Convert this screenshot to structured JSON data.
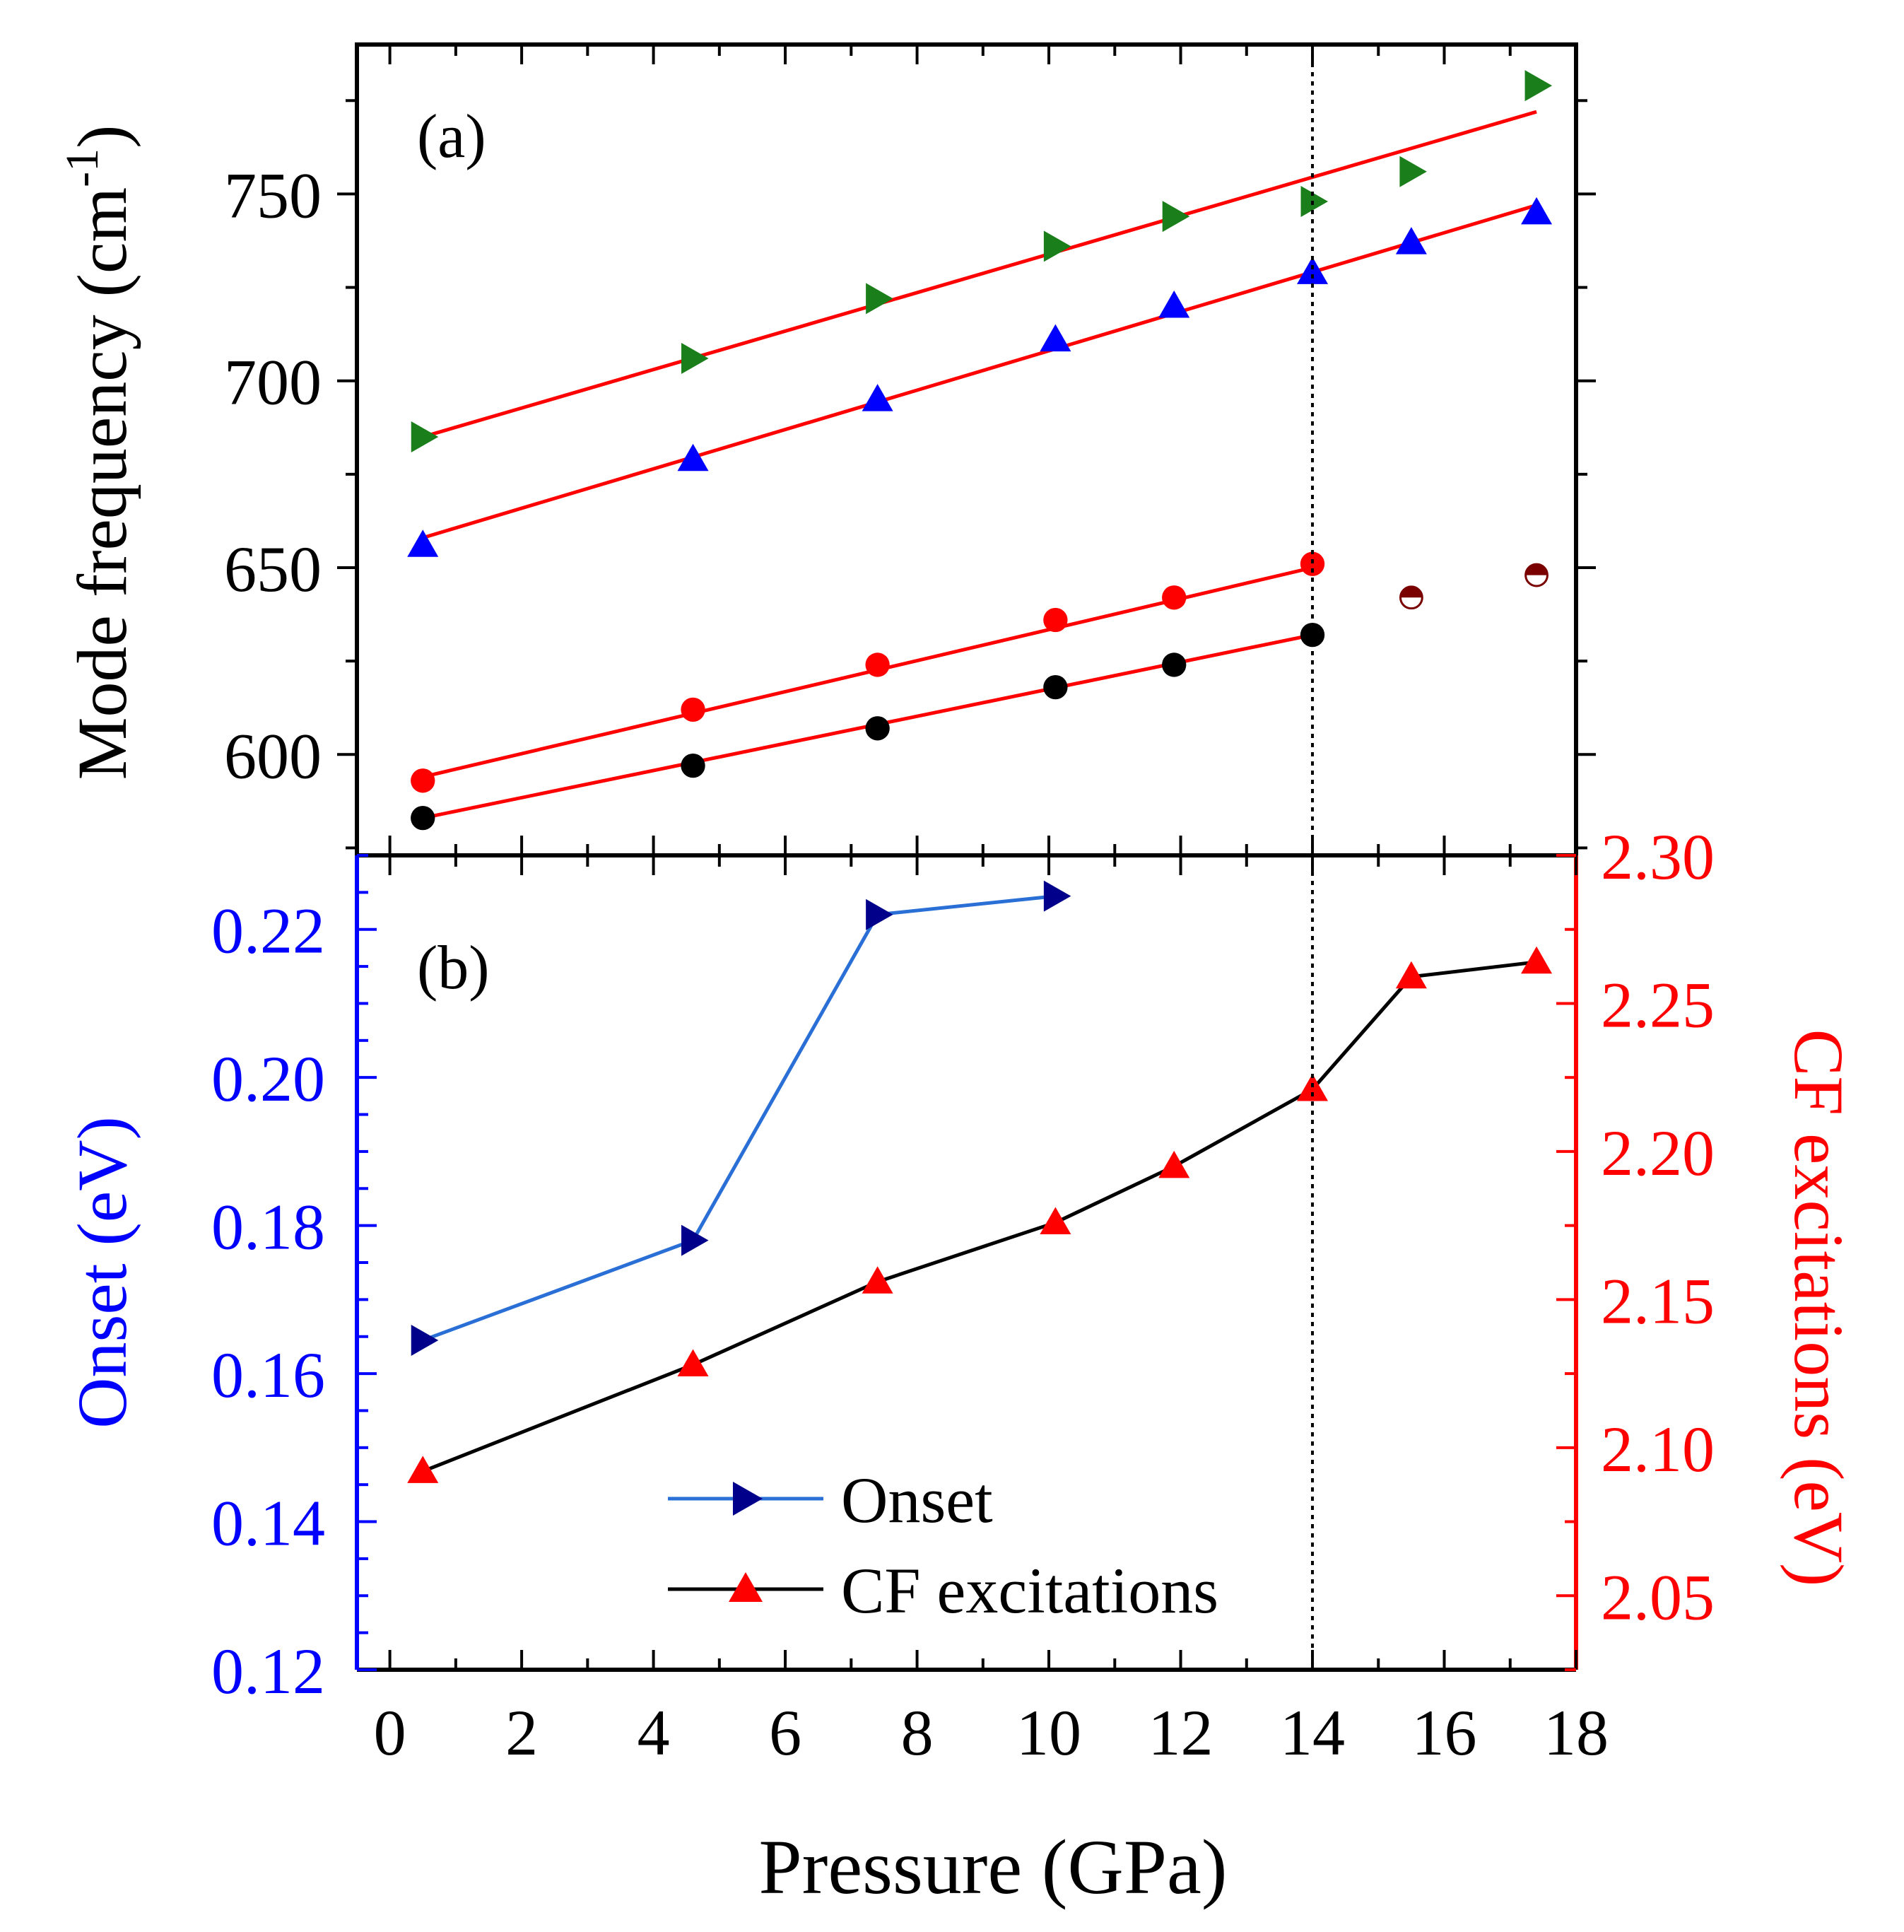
{
  "figure": {
    "xlabel": "Pressure (GPa)",
    "vertical_line_x": 14
  },
  "chart_data": [
    {
      "type": "scatter",
      "panel_label": "(a)",
      "ylabel": "Mode frequency (cm",
      "ylabel_sup": "-1",
      "ylabel_close": ")",
      "xlim": [
        -0.5,
        18
      ],
      "ylim": [
        573,
        790
      ],
      "xticks": [
        0,
        2,
        4,
        6,
        8,
        10,
        12,
        14,
        16,
        18
      ],
      "yticks": [
        600,
        650,
        700,
        750
      ],
      "ytick_labels": [
        "600",
        "650",
        "700",
        "750"
      ],
      "series": [
        {
          "marker": "triangle-right",
          "color": "#1a7f1a",
          "x": [
            0.5,
            4.6,
            7.4,
            10.1,
            11.9,
            14.0,
            15.5,
            17.4
          ],
          "y": [
            685,
            706,
            722,
            736,
            744,
            748,
            756,
            779
          ]
        },
        {
          "marker": "triangle-up",
          "color": "#0000ff",
          "x": [
            0.5,
            4.6,
            7.4,
            10.1,
            11.9,
            14.0,
            15.5,
            17.4
          ],
          "y": [
            656,
            679,
            695,
            711,
            720,
            729,
            737,
            745
          ]
        },
        {
          "marker": "circle",
          "color": "#ff0000",
          "x": [
            0.5,
            4.6,
            7.4,
            10.1,
            11.9,
            14.0
          ],
          "y": [
            593,
            612,
            624,
            636,
            642,
            651
          ]
        },
        {
          "marker": "circle",
          "color": "#000000",
          "x": [
            0.5,
            4.6,
            7.4,
            10.1,
            11.9,
            14.0
          ],
          "y": [
            583,
            597,
            607,
            618,
            624,
            632
          ]
        },
        {
          "marker": "half-circle",
          "color": "#7a0000",
          "x": [
            15.5,
            17.4
          ],
          "y": [
            642,
            648
          ]
        }
      ],
      "fits": [
        {
          "color": "#ff0000",
          "x": [
            0.5,
            17.4
          ],
          "y": [
            685,
            772
          ]
        },
        {
          "color": "#ff0000",
          "x": [
            0.5,
            17.4
          ],
          "y": [
            658,
            747
          ]
        },
        {
          "color": "#ff0000",
          "x": [
            0.5,
            14.0
          ],
          "y": [
            594,
            650
          ]
        },
        {
          "color": "#ff0000",
          "x": [
            0.5,
            14.0
          ],
          "y": [
            583,
            632
          ]
        }
      ]
    },
    {
      "type": "line",
      "panel_label": "(b)",
      "xlim": [
        -0.5,
        18
      ],
      "xticks": [
        0,
        2,
        4,
        6,
        8,
        10,
        12,
        14,
        16,
        18
      ],
      "xtick_labels": [
        "0",
        "2",
        "4",
        "6",
        "8",
        "10",
        "12",
        "14",
        "16",
        "18"
      ],
      "left_axis": {
        "label": "Onset (eV)",
        "color": "#0000ff",
        "ylim": [
          0.12,
          0.23
        ],
        "yticks": [
          0.12,
          0.14,
          0.16,
          0.18,
          0.2,
          0.22
        ],
        "ytick_labels": [
          "0.12",
          "0.14",
          "0.16",
          "0.18",
          "0.20",
          "0.22"
        ]
      },
      "right_axis": {
        "label": "CF excitations (eV)",
        "color": "#ff0000",
        "ylim": [
          2.025,
          2.3
        ],
        "yticks": [
          2.05,
          2.1,
          2.15,
          2.2,
          2.25,
          2.3
        ],
        "ytick_labels": [
          "2.05",
          "2.10",
          "2.15",
          "2.20",
          "2.25",
          "2.30"
        ]
      },
      "series": [
        {
          "name": "Onset",
          "axis": "left",
          "marker": "triangle-right",
          "line_color": "#2a6fd6",
          "marker_color": "#00008b",
          "x": [
            0.5,
            4.6,
            7.4,
            10.1
          ],
          "y": [
            0.1645,
            0.178,
            0.222,
            0.2245
          ]
        },
        {
          "name": "CF excitations",
          "axis": "right",
          "marker": "triangle-up",
          "line_color": "#000000",
          "marker_color": "#ff0000",
          "x": [
            0.5,
            4.6,
            7.4,
            10.1,
            11.9,
            14.0,
            15.5,
            17.4
          ],
          "y": [
            2.092,
            2.128,
            2.156,
            2.176,
            2.195,
            2.221,
            2.259,
            2.264
          ]
        }
      ],
      "legend_position": "bottom-center"
    }
  ]
}
